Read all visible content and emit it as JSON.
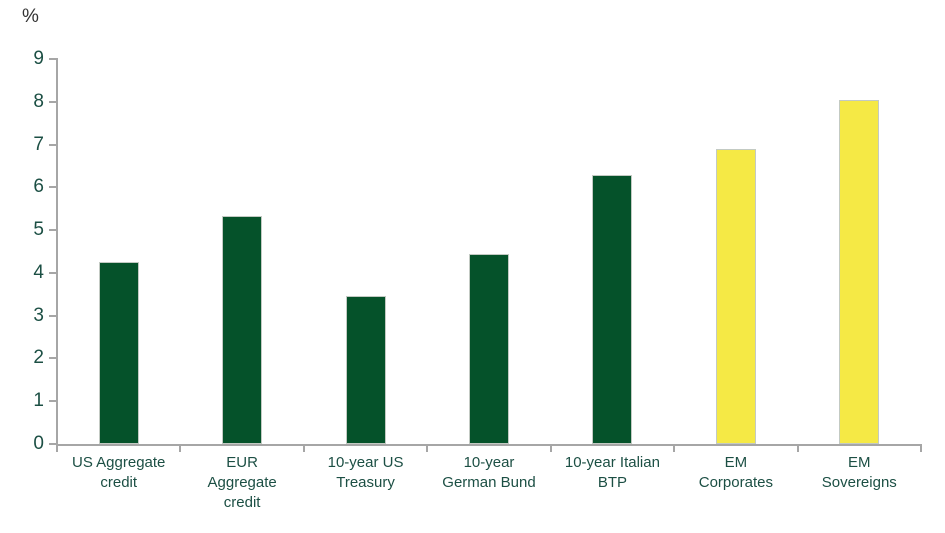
{
  "chart_data": {
    "type": "bar",
    "title": "",
    "ylabel": "%",
    "xlabel": "",
    "ylim": [
      0,
      9
    ],
    "yticks": [
      0,
      1,
      2,
      3,
      4,
      5,
      6,
      7,
      8,
      9
    ],
    "grid": false,
    "legend": false,
    "categories": [
      "US Aggregate credit",
      "EUR Aggregate credit",
      "10-year US Treasury",
      "10-year German Bund",
      "10-year Italian BTP",
      "EM Corporates",
      "EM Sovereigns"
    ],
    "category_display": [
      "US Aggregate\ncredit",
      "EUR\nAggregate\ncredit",
      "10-year US\nTreasury",
      "10-year\nGerman Bund",
      "10-year Italian\nBTP",
      "EM\nCorporates",
      "EM\nSovereigns"
    ],
    "values": [
      4.25,
      5.33,
      3.45,
      4.45,
      6.28,
      6.9,
      8.05
    ],
    "bar_colors": [
      "#05522a",
      "#05522a",
      "#05522a",
      "#05522a",
      "#05522a",
      "#f5e945",
      "#f5e945"
    ],
    "colors": {
      "dark_green": "#05522a",
      "yellow": "#f5e945",
      "axis_gray": "#a6a6a6",
      "tick_label_green": "#1c4f44",
      "unit_label": "#333333"
    }
  }
}
